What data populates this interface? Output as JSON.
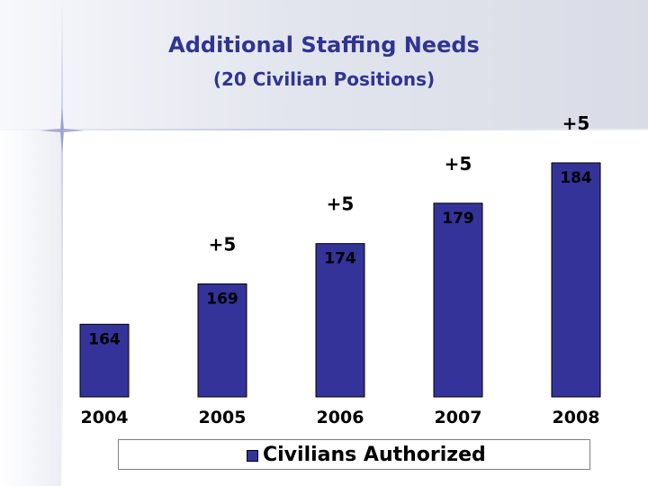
{
  "title": "Additional Staffing Needs",
  "subtitle": "(20 Civilian Positions)",
  "chart_data": {
    "type": "bar",
    "categories": [
      "2004",
      "2005",
      "2006",
      "2007",
      "2008"
    ],
    "values": [
      164,
      169,
      174,
      179,
      184
    ],
    "value_labels": [
      "164",
      "169",
      "174",
      "179",
      "184"
    ],
    "increment_labels": [
      "",
      "+5",
      "+5",
      "+5",
      "+5"
    ],
    "series": [
      {
        "name": "Civilians Authorized",
        "values": [
          164,
          169,
          174,
          179,
          184
        ]
      }
    ],
    "ylim": [
      155,
      185
    ],
    "grid": false,
    "legend": "bottom",
    "bar_color": "#33339a"
  }
}
